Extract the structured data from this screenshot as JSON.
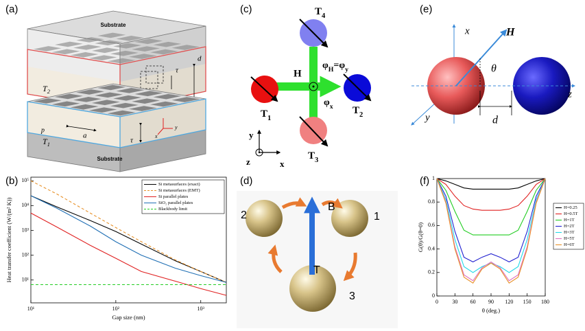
{
  "panel_labels": [
    "(a)",
    "(b)",
    "(c)",
    "(d)",
    "(e)",
    "(f)"
  ],
  "diagrams": {
    "a": {
      "substrate_top": "Substrate",
      "t2": [
        "T",
        "2"
      ],
      "tau_top": "τ",
      "d": "d",
      "p": "p",
      "a": "a",
      "t1": [
        "T",
        "1"
      ],
      "tau_bottom": "τ",
      "axis_x": "x",
      "axis_y": "y",
      "substrate_bottom": "Substrate"
    },
    "c": {
      "t4": [
        "T",
        "4"
      ],
      "t1": [
        "T",
        "1"
      ],
      "t2": [
        "T",
        "2"
      ],
      "t3": [
        "T",
        "3"
      ],
      "h": "H",
      "phi_h": [
        "φ",
        "H",
        "=φ",
        "y"
      ],
      "phi_x": [
        "φ",
        "x"
      ],
      "axis_y": "y",
      "axis_x": "x",
      "axis_z": "z"
    },
    "d": {
      "label_b": "B",
      "label_t": "T",
      "sphere_1": "1",
      "sphere_2": "2",
      "sphere_3": "3"
    },
    "e": {
      "axis_x": "x",
      "axis_y": "y",
      "axis_z": "z",
      "h": "H",
      "theta": "θ",
      "d": "d"
    }
  },
  "chart_data": [
    {
      "type": "line",
      "x_label": "Gap size (nm)",
      "y_label": "Heat transfer coefficient (W/(m² K))",
      "xlog": true,
      "ylog": true,
      "xlim": [
        10,
        2000
      ],
      "ylim": [
        1.2,
        140000
      ],
      "xticks": [
        {
          "value": 10,
          "label": "10¹"
        },
        {
          "value": 100,
          "label": "10²"
        },
        {
          "value": 1000,
          "label": "10³"
        }
      ],
      "yticks": [
        {
          "value": 10,
          "label": "10¹"
        },
        {
          "value": 100,
          "label": "10²"
        },
        {
          "value": 1000,
          "label": "10³"
        },
        {
          "value": 10000,
          "label": "10⁴"
        },
        {
          "value": 100000,
          "label": "10⁵"
        }
      ],
      "legend": "upper right",
      "x": [
        10,
        20,
        50,
        100,
        200,
        500,
        1000,
        2000
      ],
      "series": [
        {
          "name": "Si metasurfaces (exact)",
          "color": "#000000",
          "dashed": false,
          "values": [
            25000,
            9000,
            2500,
            900,
            280,
            60,
            22,
            8
          ]
        },
        {
          "name": "Si metasurfaces (EMT)",
          "color": "#e8922a",
          "dashed": true,
          "values": [
            100000,
            30000,
            5000,
            1300,
            350,
            65,
            22,
            8
          ]
        },
        {
          "name": "Si parallel plates",
          "color": "#e02020",
          "dashed": false,
          "values": [
            5000,
            1400,
            250,
            75,
            22,
            9,
            4.5,
            2.4
          ]
        },
        {
          "name": "SiO₂ parallel plates",
          "color": "#1f6fb4",
          "dashed": false,
          "values": [
            25000,
            8000,
            1500,
            350,
            100,
            30,
            15,
            8
          ]
        },
        {
          "name": "Blackbody limit",
          "color": "#22cc22",
          "dashed": true,
          "values": [
            6.5,
            6.5,
            6.5,
            6.5,
            6.5,
            6.5,
            6.5,
            6.5
          ]
        }
      ]
    },
    {
      "type": "line",
      "x_label": "θ (deg.)",
      "y_label": "G(θ)/G(θ=0)",
      "xlog": false,
      "ylog": false,
      "xlim": [
        0,
        180
      ],
      "ylim": [
        0,
        1
      ],
      "xticks": [
        0,
        30,
        60,
        90,
        120,
        150,
        180
      ],
      "yticks": [
        0,
        0.2,
        0.4,
        0.6,
        0.8,
        1
      ],
      "legend": "outside right",
      "x": [
        0,
        15,
        30,
        45,
        60,
        75,
        90,
        105,
        120,
        135,
        150,
        165,
        180
      ],
      "series": [
        {
          "name": "H=0.25",
          "color": "#000000",
          "dashed": false,
          "values": [
            1,
            0.98,
            0.95,
            0.92,
            0.91,
            0.91,
            0.91,
            0.91,
            0.91,
            0.92,
            0.95,
            0.98,
            1
          ]
        },
        {
          "name": "H=0.5T",
          "color": "#e02020",
          "dashed": false,
          "values": [
            1,
            0.95,
            0.85,
            0.77,
            0.74,
            0.73,
            0.73,
            0.73,
            0.74,
            0.77,
            0.85,
            0.95,
            1
          ]
        },
        {
          "name": "H=1T",
          "color": "#22cc22",
          "dashed": false,
          "values": [
            1,
            0.9,
            0.72,
            0.56,
            0.52,
            0.52,
            0.52,
            0.52,
            0.52,
            0.56,
            0.72,
            0.9,
            1
          ]
        },
        {
          "name": "H=2T",
          "color": "#2020d0",
          "dashed": false,
          "values": [
            1,
            0.85,
            0.55,
            0.33,
            0.29,
            0.33,
            0.36,
            0.33,
            0.29,
            0.33,
            0.55,
            0.85,
            1
          ]
        },
        {
          "name": "H=3T",
          "color": "#22d8e8",
          "dashed": false,
          "values": [
            1,
            0.82,
            0.48,
            0.25,
            0.2,
            0.25,
            0.28,
            0.25,
            0.2,
            0.25,
            0.48,
            0.82,
            1
          ]
        },
        {
          "name": "H=5T",
          "color": "#e070c0",
          "dashed": false,
          "values": [
            1,
            0.8,
            0.42,
            0.18,
            0.13,
            0.24,
            0.29,
            0.24,
            0.13,
            0.18,
            0.42,
            0.8,
            1
          ]
        },
        {
          "name": "H=6T",
          "color": "#e8922a",
          "dashed": false,
          "values": [
            1,
            0.79,
            0.4,
            0.16,
            0.11,
            0.23,
            0.28,
            0.23,
            0.11,
            0.16,
            0.4,
            0.79,
            1
          ]
        }
      ]
    }
  ]
}
